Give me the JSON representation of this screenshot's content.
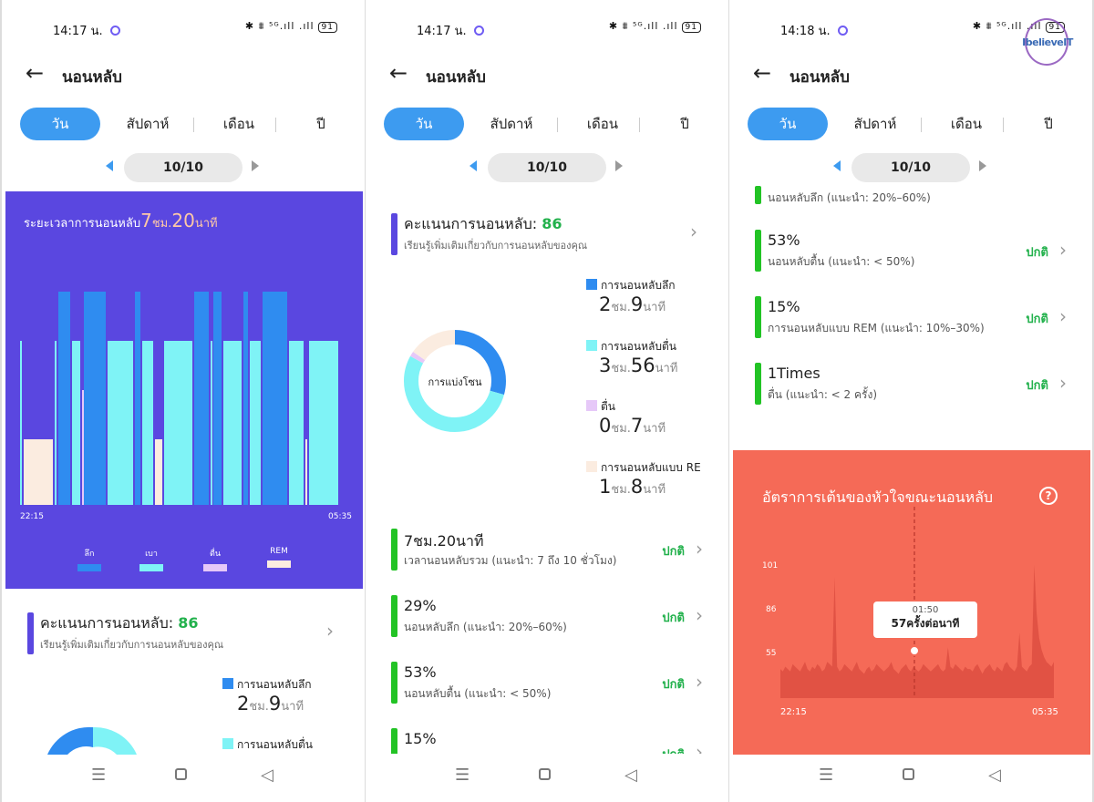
{
  "panels": [
    {
      "status": {
        "time": "14:17 น.",
        "battery": "91",
        "signal": "✱ ⩩ ⁵ᴳ.ıll .ıll"
      },
      "header": {
        "title": "นอนหลับ",
        "back_icon": "←"
      },
      "tabs": [
        "วัน",
        "สัปดาห์",
        "เดือน",
        "ปี"
      ],
      "date": "10/10"
    },
    {
      "status": {
        "time": "14:17 น.",
        "battery": "91",
        "signal": "✱ ⩩ ⁵ᴳ.ıll .ıll"
      },
      "header": {
        "title": "นอนหลับ",
        "back_icon": "←"
      },
      "tabs": [
        "วัน",
        "สัปดาห์",
        "เดือน",
        "ปี"
      ],
      "date": "10/10"
    },
    {
      "status": {
        "time": "14:18 น.",
        "battery": "91",
        "signal": "✱ ⩩ ⁵ᴳ.ıll .ıll"
      },
      "header": {
        "title": "นอนหลับ",
        "back_icon": "←"
      },
      "tabs": [
        "วัน",
        "สัปดาห์",
        "เดือน",
        "ปี"
      ],
      "date": "10/10"
    }
  ],
  "sleep_duration": {
    "label": "ระยะเวลาการนอนหลับ",
    "hours": "7",
    "hours_unit": "ชม.",
    "minutes": "20",
    "minutes_unit": "นาที",
    "start": "22:15",
    "end": "05:35",
    "legend": [
      "ลึก",
      "เบา",
      "ตื่น",
      "REM"
    ]
  },
  "score": {
    "label": "คะแนนการนอนหลับ:",
    "value": "86",
    "subtitle": "เรียนรู้เพิ่มเติมเกี่ยวกับการนอนหลับของคุณ"
  },
  "donut": {
    "center": "การแบ่งโซน",
    "segments": [
      {
        "name": "การนอนหลับลึก",
        "h": "2",
        "hu": "ชม.",
        "m": "9",
        "mu": "นาที",
        "color": "#2f8cf0",
        "minutes": 129
      },
      {
        "name": "การนอนหลับตื่น",
        "h": "3",
        "hu": "ชม.",
        "m": "56",
        "mu": "นาที",
        "color": "#7ff3f6",
        "minutes": 236
      },
      {
        "name": "ตื่น",
        "h": "0",
        "hu": "ชม.",
        "m": "7",
        "mu": "นาที",
        "color": "#e6c8f8",
        "minutes": 7
      },
      {
        "name": "การนอนหลับแบบ RE",
        "h": "1",
        "hu": "ชม.",
        "m": "8",
        "mu": "นาที",
        "color": "#fbece0",
        "minutes": 68
      }
    ]
  },
  "metrics": [
    {
      "value": "7ชม.20นาที",
      "desc": "เวลานอนหลับรวม (แนะนำ: 7 ถึง 10 ชั่วโมง)",
      "status": "ปกติ"
    },
    {
      "value": "29%",
      "desc": "นอนหลับลึก (แนะนำ: 20%–60%)",
      "status": "ปกติ"
    },
    {
      "value": "53%",
      "desc": "นอนหลับตื้น (แนะนำ: < 50%)",
      "status": "ปกติ"
    },
    {
      "value": "15%",
      "desc": "การนอนหลับแบบ REM (แนะนำ: 10%–30%)",
      "status": "ปกติ"
    },
    {
      "value": "1Times",
      "desc": "ตื่น (แนะนำ: < 2 ครั้ง)",
      "status": "ปกติ"
    }
  ],
  "heart_rate": {
    "title": "อัตราการเต้นของหัวใจขณะนอนหลับ",
    "help": "?",
    "y_labels": [
      "101",
      "86",
      "55"
    ],
    "x_start": "22:15",
    "x_end": "05:35",
    "tooltip_time": "01:50",
    "tooltip_value": "57ครั้งต่อนาที"
  },
  "watermark": "IbelieveIT",
  "nav": {
    "menu_icon": "☰",
    "back_icon": "◁"
  },
  "chevron": "›",
  "chart_data": [
    {
      "type": "bar",
      "title": "ระยะเวลาการนอนหลับ 7ชม.20นาที",
      "xlabel": "",
      "ylabel": "",
      "x_range": [
        "22:15",
        "05:35"
      ],
      "series": [
        {
          "name": "ลึก",
          "color": "#2f8cf0"
        },
        {
          "name": "เบา",
          "color": "#7ff3f6"
        },
        {
          "name": "ตื่น",
          "color": "#e6c8f8"
        },
        {
          "name": "REM",
          "color": "#fbece0"
        }
      ],
      "stages": [
        [
          "เบา",
          0.0,
          0.012
        ],
        [
          "REM",
          0.012,
          0.105
        ],
        [
          "เบา",
          0.105,
          0.118
        ],
        [
          "ลึก",
          0.118,
          0.158
        ],
        [
          "เบา",
          0.158,
          0.188
        ],
        [
          "ตื่น",
          0.188,
          0.195
        ],
        [
          "ลึก",
          0.195,
          0.268
        ],
        [
          "เบา",
          0.268,
          0.35
        ],
        [
          "ลึก",
          0.35,
          0.372
        ],
        [
          "เบา",
          0.372,
          0.41
        ],
        [
          "REM",
          0.41,
          0.44
        ],
        [
          "เบา",
          0.44,
          0.53
        ],
        [
          "ลึก",
          0.53,
          0.58
        ],
        [
          "เบา",
          0.58,
          0.59
        ],
        [
          "ลึก",
          0.59,
          0.62
        ],
        [
          "เบา",
          0.62,
          0.68
        ],
        [
          "ลึก",
          0.68,
          0.7
        ],
        [
          "เบา",
          0.7,
          0.74
        ],
        [
          "ลึก",
          0.74,
          0.82
        ],
        [
          "เบา",
          0.82,
          0.87
        ],
        [
          "REM",
          0.87,
          0.88
        ],
        [
          "เบา",
          0.88,
          0.975
        ]
      ]
    },
    {
      "type": "pie",
      "title": "การแบ่งโซน",
      "categories": [
        "การนอนหลับลึก",
        "การนอนหลับตื่น",
        "ตื่น",
        "การนอนหลับแบบ RE"
      ],
      "values": [
        129,
        236,
        7,
        68
      ]
    },
    {
      "type": "area",
      "title": "อัตราการเต้นของหัวใจขณะนอนหลับ",
      "x_range": [
        "22:15",
        "05:35"
      ],
      "ylim": [
        45,
        106
      ],
      "y_ticks": [
        101,
        86,
        55
      ],
      "values": [
        57,
        56,
        58,
        57,
        56,
        59,
        58,
        57,
        56,
        58,
        60,
        57,
        56,
        58,
        57,
        59,
        58,
        56,
        57,
        60,
        59,
        58,
        95,
        58,
        56,
        57,
        59,
        58,
        57,
        56,
        58,
        60,
        57,
        56,
        55,
        57,
        58,
        56,
        57,
        59,
        58,
        57,
        56,
        57,
        58,
        60,
        57,
        56,
        55,
        57,
        58,
        59,
        57,
        56,
        58,
        57,
        56,
        57,
        59,
        58,
        57,
        56,
        57,
        58,
        59,
        57,
        56,
        57,
        66,
        58,
        57,
        59,
        58,
        57,
        56,
        58,
        57,
        57,
        56,
        58,
        59,
        57,
        55,
        57,
        58,
        59,
        57,
        56,
        58,
        57,
        56,
        59,
        60,
        58,
        57,
        56,
        58,
        72,
        58,
        57,
        56,
        58,
        59,
        100,
        80,
        70,
        65,
        62,
        60,
        59,
        58,
        60
      ]
    }
  ]
}
